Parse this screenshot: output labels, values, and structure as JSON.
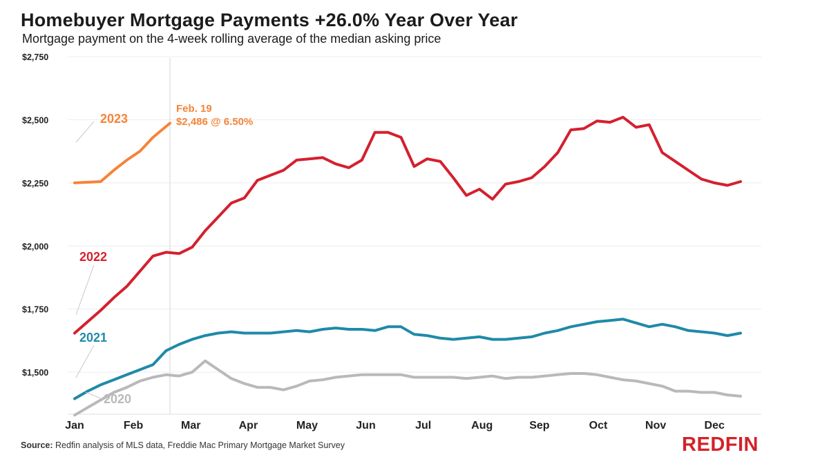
{
  "title": "Homebuyer Mortgage Payments +26.0% Year Over Year",
  "subtitle": "Mortgage payment on the 4-week rolling average of the median asking price",
  "source_label": "Source:",
  "source_text": "Redfin analysis of MLS data, Freddie Mac Primary Mortgage Market Survey",
  "brand": "REDFIN",
  "colors": {
    "2023": "#f5843a",
    "2022": "#d4202e",
    "2021": "#1f8aa8",
    "2020": "#b9b9b9",
    "brand": "#d3222a"
  },
  "chart_data": {
    "type": "line",
    "title": "Homebuyer Mortgage Payments +26.0% Year Over Year",
    "subtitle": "Mortgage payment on the 4-week rolling average of the median asking price",
    "x_unit": "week of year",
    "xlim": [
      1,
      52
    ],
    "ylim": [
      1350,
      2750
    ],
    "y_ticks": [
      "$2,750",
      "$2,500",
      "$2,250",
      "$2,000",
      "$1,750",
      "$1,500"
    ],
    "y_tick_values": [
      2750,
      2500,
      2250,
      2000,
      1750,
      1500
    ],
    "x_tick_labels": [
      "Jan",
      "Feb",
      "Mar",
      "Apr",
      "May",
      "Jun",
      "Jul",
      "Aug",
      "Sep",
      "Oct",
      "Nov",
      "Dec"
    ],
    "x_tick_weeks": [
      1,
      5.5,
      9.9,
      14.3,
      18.8,
      23.3,
      27.7,
      32.2,
      36.6,
      41.1,
      45.5,
      50
    ],
    "grid": "horizontal",
    "marker_line_week": 8.3,
    "annotation": {
      "line1": "Feb. 19",
      "line2": "$2,486 @ 6.50%",
      "week": 8.3,
      "value": 2486
    },
    "series": [
      {
        "name": "2023",
        "x": [
          1,
          3,
          4,
          5,
          6,
          7,
          8.3
        ],
        "values": [
          2250,
          2255,
          2300,
          2340,
          2375,
          2430,
          2486
        ]
      },
      {
        "name": "2022",
        "x": [
          1,
          2,
          3,
          4,
          5,
          6,
          7,
          8,
          9,
          10,
          11,
          12,
          13,
          14,
          15,
          16,
          17,
          18,
          19,
          20,
          21,
          22,
          23,
          24,
          25,
          26,
          27,
          28,
          29,
          30,
          31,
          32,
          33,
          34,
          35,
          36,
          37,
          38,
          39,
          40,
          41,
          42,
          43,
          44,
          45,
          46,
          47,
          48,
          49,
          50,
          51,
          52
        ],
        "values": [
          1655,
          1700,
          1745,
          1795,
          1840,
          1900,
          1960,
          1975,
          1970,
          1995,
          2060,
          2115,
          2170,
          2190,
          2260,
          2280,
          2300,
          2340,
          2345,
          2350,
          2325,
          2310,
          2340,
          2450,
          2450,
          2430,
          2315,
          2345,
          2335,
          2270,
          2200,
          2225,
          2185,
          2245,
          2255,
          2270,
          2315,
          2370,
          2460,
          2465,
          2495,
          2490,
          2510,
          2470,
          2480,
          2370,
          2335,
          2300,
          2265,
          2250,
          2240,
          2255
        ]
      },
      {
        "name": "2021",
        "x": [
          1,
          2,
          3,
          4,
          5,
          6,
          7,
          8,
          9,
          10,
          11,
          12,
          13,
          14,
          15,
          16,
          17,
          18,
          19,
          20,
          21,
          22,
          23,
          24,
          25,
          26,
          27,
          28,
          29,
          30,
          31,
          32,
          33,
          34,
          35,
          36,
          37,
          38,
          39,
          40,
          41,
          42,
          43,
          44,
          45,
          46,
          47,
          48,
          49,
          50,
          51,
          52
        ],
        "values": [
          1395,
          1425,
          1450,
          1470,
          1490,
          1510,
          1530,
          1585,
          1610,
          1630,
          1645,
          1655,
          1660,
          1655,
          1655,
          1655,
          1660,
          1665,
          1660,
          1670,
          1675,
          1670,
          1670,
          1665,
          1680,
          1680,
          1650,
          1645,
          1635,
          1630,
          1635,
          1640,
          1630,
          1630,
          1635,
          1640,
          1655,
          1665,
          1680,
          1690,
          1700,
          1705,
          1710,
          1695,
          1680,
          1690,
          1680,
          1665,
          1660,
          1655,
          1645,
          1655
        ]
      },
      {
        "name": "2020",
        "x": [
          1,
          2,
          3,
          4,
          5,
          6,
          7,
          8,
          9,
          10,
          11,
          12,
          13,
          14,
          15,
          16,
          17,
          18,
          19,
          20,
          21,
          22,
          23,
          24,
          25,
          26,
          27,
          28,
          29,
          30,
          31,
          32,
          33,
          34,
          35,
          36,
          37,
          38,
          39,
          40,
          41,
          42,
          43,
          44,
          45,
          46,
          47,
          48,
          49,
          50,
          51,
          52
        ],
        "values": [
          1330,
          1360,
          1390,
          1420,
          1440,
          1465,
          1480,
          1490,
          1485,
          1500,
          1545,
          1510,
          1475,
          1455,
          1440,
          1440,
          1430,
          1445,
          1465,
          1470,
          1480,
          1485,
          1490,
          1490,
          1490,
          1490,
          1480,
          1480,
          1480,
          1480,
          1475,
          1480,
          1485,
          1475,
          1480,
          1480,
          1485,
          1490,
          1495,
          1495,
          1490,
          1480,
          1470,
          1465,
          1455,
          1445,
          1425,
          1425,
          1420,
          1420,
          1410,
          1405
        ]
      }
    ]
  }
}
